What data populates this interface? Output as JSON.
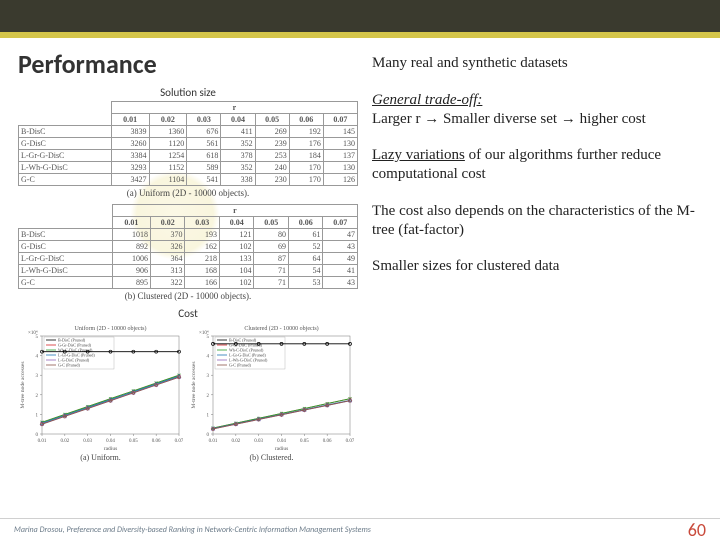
{
  "header": {
    "title": "Performance"
  },
  "left": {
    "solution_size_label": "Solution size",
    "cost_label": "Cost",
    "table_a": {
      "r_header": "r",
      "r_values": [
        "0.01",
        "0.02",
        "0.03",
        "0.04",
        "0.05",
        "0.06",
        "0.07"
      ],
      "rows": [
        {
          "name": "B-DisC",
          "vals": [
            3839,
            1360,
            676,
            411,
            269,
            192,
            145
          ]
        },
        {
          "name": "G-DisC",
          "vals": [
            3260,
            1120,
            561,
            352,
            239,
            176,
            130
          ]
        },
        {
          "name": "L-Gr-G-DisC",
          "vals": [
            3384,
            1254,
            618,
            378,
            253,
            184,
            137
          ]
        },
        {
          "name": "L-Wh-G-DisC",
          "vals": [
            3293,
            1152,
            589,
            352,
            240,
            170,
            130
          ]
        },
        {
          "name": "G-C",
          "vals": [
            3427,
            1104,
            541,
            338,
            230,
            170,
            126
          ]
        }
      ],
      "caption": "(a) Uniform (2D - 10000 objects)."
    },
    "table_b": {
      "r_header": "r",
      "r_values": [
        "0.01",
        "0.02",
        "0.03",
        "0.04",
        "0.05",
        "0.06",
        "0.07"
      ],
      "rows": [
        {
          "name": "B-DisC",
          "vals": [
            1018,
            370,
            193,
            121,
            80,
            61,
            47
          ]
        },
        {
          "name": "G-DisC",
          "vals": [
            892,
            326,
            162,
            102,
            69,
            52,
            43
          ]
        },
        {
          "name": "L-Gr-G-DisC",
          "vals": [
            1006,
            364,
            218,
            133,
            87,
            64,
            49
          ]
        },
        {
          "name": "L-Wh-G-DisC",
          "vals": [
            906,
            313,
            168,
            104,
            71,
            54,
            41
          ]
        },
        {
          "name": "G-C",
          "vals": [
            895,
            322,
            166,
            102,
            71,
            53,
            43
          ]
        }
      ],
      "caption": "(b) Clustered (2D - 10000 objects)."
    },
    "chart_a": {
      "type": "line",
      "title": "Uniform (2D - 10000 objects)",
      "xlabel": "radius",
      "ylabel": "M-tree node accesses",
      "y_axis_note": "×10⁴",
      "xlim": [
        0.01,
        0.07
      ],
      "ylim": [
        0,
        5
      ],
      "xtick": [
        0.01,
        0.02,
        0.03,
        0.04,
        0.05,
        0.06,
        0.07
      ],
      "ytick": [
        0,
        1,
        2,
        3,
        4,
        5
      ],
      "series": [
        {
          "name": "B-DisC (Pruned)",
          "color": "#000000",
          "marker": "circle",
          "y": [
            4.2,
            4.2,
            4.2,
            4.2,
            4.2,
            4.2,
            4.2
          ]
        },
        {
          "name": "G-Gr-DisC (Pruned)",
          "color": "#d62728",
          "marker": "plus",
          "y": [
            0.6,
            1.0,
            1.4,
            1.8,
            2.2,
            2.6,
            3.0
          ]
        },
        {
          "name": "Wh-C-DisC (Pruned)",
          "color": "#2ca02c",
          "marker": "x",
          "y": [
            0.6,
            1.0,
            1.4,
            1.8,
            2.2,
            2.6,
            3.0
          ]
        },
        {
          "name": "L-Gr-G-DisC (Pruned)",
          "color": "#1f77b4",
          "marker": "triangle",
          "y": [
            0.55,
            0.95,
            1.35,
            1.75,
            2.15,
            2.55,
            2.95
          ]
        },
        {
          "name": "L-G-DisC (Pruned)",
          "color": "#9467bd",
          "marker": "square",
          "y": [
            0.5,
            0.9,
            1.3,
            1.7,
            2.1,
            2.5,
            2.9
          ]
        },
        {
          "name": "G-C (Pruned)",
          "color": "#8c564b",
          "marker": "diamond",
          "y": [
            0.5,
            0.9,
            1.3,
            1.7,
            2.1,
            2.5,
            2.9
          ]
        }
      ],
      "grid_color": "#e0e0e0",
      "background": "#ffffff",
      "caption": "(a) Uniform."
    },
    "chart_b": {
      "type": "line",
      "title": "Clustered (2D - 10000 objects)",
      "xlabel": "radius",
      "ylabel": "M-tree node accesses",
      "y_axis_note": "×10⁴",
      "xlim": [
        0.01,
        0.07
      ],
      "ylim": [
        0,
        5
      ],
      "xtick": [
        0.01,
        0.02,
        0.03,
        0.04,
        0.05,
        0.06,
        0.07
      ],
      "ytick": [
        0,
        1,
        2,
        3,
        4,
        5
      ],
      "series": [
        {
          "name": "B-DisC (Pruned)",
          "color": "#000000",
          "marker": "circle",
          "y": [
            4.6,
            4.6,
            4.6,
            4.6,
            4.6,
            4.6,
            4.6
          ]
        },
        {
          "name": "G-Gr-DisC (Pruned)",
          "color": "#d62728",
          "marker": "plus",
          "y": [
            0.3,
            0.55,
            0.8,
            1.05,
            1.3,
            1.55,
            1.8
          ]
        },
        {
          "name": "Wh-C-DisC (Pruned)",
          "color": "#2ca02c",
          "marker": "x",
          "y": [
            0.3,
            0.55,
            0.8,
            1.05,
            1.3,
            1.55,
            1.8
          ]
        },
        {
          "name": "L-Gr-G-DisC (Pruned)",
          "color": "#1f77b4",
          "marker": "triangle",
          "y": [
            0.28,
            0.52,
            0.76,
            1.0,
            1.24,
            1.48,
            1.72
          ]
        },
        {
          "name": "L-Wh-G-DisC (Pruned)",
          "color": "#9467bd",
          "marker": "square",
          "y": [
            0.26,
            0.5,
            0.74,
            0.98,
            1.22,
            1.46,
            1.7
          ]
        },
        {
          "name": "G-C (Pruned)",
          "color": "#8c564b",
          "marker": "diamond",
          "y": [
            0.26,
            0.5,
            0.74,
            0.98,
            1.22,
            1.46,
            1.7
          ]
        }
      ],
      "grid_color": "#e0e0e0",
      "background": "#ffffff",
      "caption": "(b) Clustered."
    }
  },
  "right": {
    "p1": "Many real and synthetic datasets",
    "p2_a": "General trade-off:",
    "p2_b": "Larger r → Smaller diverse set → higher cost",
    "p3_a": "Lazy variations",
    "p3_b": " of our algorithms  further reduce computational cost",
    "p4": "The cost also depends on the characteristics of the M-tree (fat-factor)",
    "p5": "Smaller sizes for clustered data"
  },
  "footer": {
    "ref": "Marina Drosou, Preference and Diversity-based Ranking in Network-Centric Information Management Systems",
    "page": "60"
  },
  "colors": {
    "topbar": "#3a3a2e",
    "accent": "#d4c54a",
    "page_num": "#c94a3b"
  }
}
